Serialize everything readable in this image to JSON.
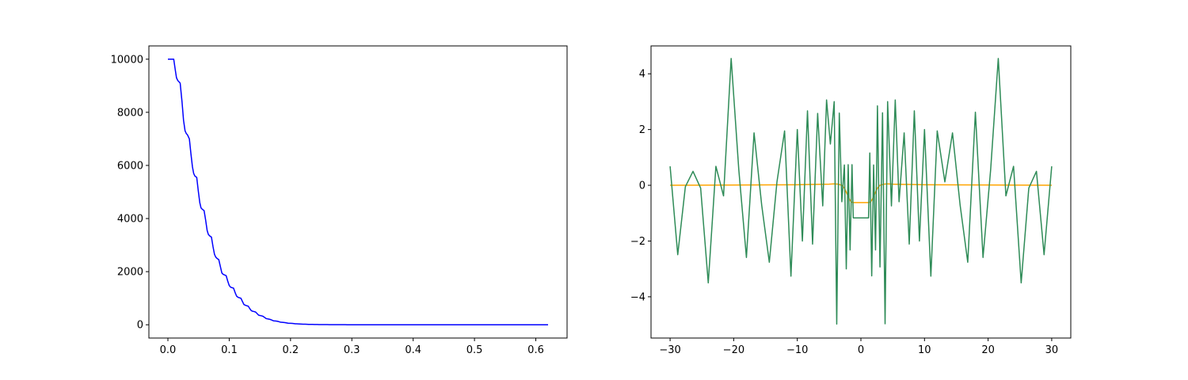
{
  "chart_data": [
    {
      "type": "line",
      "title": "",
      "xlabel": "",
      "ylabel": "",
      "xlim": [
        -0.031,
        0.651
      ],
      "ylim": [
        -500,
        10500
      ],
      "grid": false,
      "x_ticks": [
        0.0,
        0.1,
        0.2,
        0.3,
        0.4,
        0.5,
        0.6
      ],
      "x_tick_labels": [
        "0.0",
        "0.1",
        "0.2",
        "0.3",
        "0.4",
        "0.5",
        "0.6"
      ],
      "y_ticks": [
        0,
        2000,
        4000,
        6000,
        8000,
        10000
      ],
      "y_tick_labels": [
        "0",
        "2000",
        "4000",
        "6000",
        "8000",
        "10000"
      ],
      "series": [
        {
          "color": "#0000ff",
          "x": [
            0.0,
            0.005,
            0.0095,
            0.012,
            0.014,
            0.016,
            0.018,
            0.02,
            0.023,
            0.0255,
            0.028,
            0.03,
            0.032,
            0.035,
            0.0375,
            0.04,
            0.042,
            0.044,
            0.047,
            0.0495,
            0.052,
            0.054,
            0.056,
            0.059,
            0.0615,
            0.064,
            0.066,
            0.068,
            0.071,
            0.0735,
            0.076,
            0.078,
            0.08,
            0.083,
            0.0855,
            0.088,
            0.09,
            0.092,
            0.095,
            0.0975,
            0.1,
            0.102,
            0.104,
            0.107,
            0.1095,
            0.112,
            0.114,
            0.116,
            0.119,
            0.1215,
            0.124,
            0.126,
            0.128,
            0.131,
            0.1335,
            0.136,
            0.138,
            0.14,
            0.143,
            0.1455,
            0.148,
            0.15,
            0.152,
            0.155,
            0.1575,
            0.16,
            0.162,
            0.164,
            0.167,
            0.1695,
            0.172,
            0.174,
            0.176,
            0.179,
            0.1815,
            0.184,
            0.186,
            0.188,
            0.191,
            0.1935,
            0.196,
            0.198,
            0.2,
            0.203,
            0.2055,
            0.208,
            0.21,
            0.212,
            0.215,
            0.2175,
            0.22,
            0.222,
            0.224,
            0.227,
            0.2295,
            0.232,
            0.234,
            0.236,
            0.239,
            0.2415,
            0.244,
            0.246,
            0.248,
            0.251,
            0.2535,
            0.256,
            0.258,
            0.26,
            0.263,
            0.2655,
            0.268,
            0.27,
            0.272,
            0.275,
            0.2775,
            0.28,
            0.282,
            0.284,
            0.287,
            0.2895,
            0.292,
            0.294,
            0.296,
            0.299,
            0.3015,
            0.304,
            0.306,
            0.308,
            0.311,
            0.3135,
            0.316,
            0.318,
            0.32,
            0.323,
            0.3255,
            0.328,
            0.33,
            0.35,
            0.4,
            0.5,
            0.62
          ],
          "y": [
            10000,
            10000,
            10000,
            9600,
            9300,
            9200,
            9150,
            9100,
            8400,
            7700,
            7300,
            7200,
            7150,
            7000,
            6450,
            5950,
            5700,
            5600,
            5550,
            5050,
            4600,
            4400,
            4350,
            4300,
            3950,
            3550,
            3400,
            3350,
            3300,
            2950,
            2650,
            2550,
            2500,
            2450,
            2200,
            1950,
            1900,
            1880,
            1850,
            1650,
            1480,
            1420,
            1400,
            1380,
            1220,
            1080,
            1040,
            1020,
            1000,
            880,
            760,
            740,
            720,
            700,
            610,
            530,
            510,
            500,
            480,
            420,
            360,
            350,
            340,
            320,
            280,
            235,
            225,
            215,
            200,
            175,
            150,
            145,
            140,
            130,
            112,
            95,
            92,
            88,
            82,
            70,
            59,
            57,
            54,
            50,
            43,
            37,
            35,
            34,
            31,
            27,
            23,
            22,
            21,
            19,
            16,
            14,
            13,
            13,
            12,
            10,
            9,
            8,
            8,
            7,
            6,
            5,
            5,
            5,
            4,
            4,
            3,
            3,
            3,
            3,
            2,
            2,
            2,
            2,
            2,
            2,
            1,
            1,
            1,
            1,
            1,
            1,
            1,
            1,
            1,
            1,
            1,
            1,
            1,
            0,
            0,
            0,
            0,
            0,
            0,
            0,
            0
          ]
        }
      ]
    },
    {
      "type": "line",
      "title": "",
      "xlabel": "",
      "ylabel": "",
      "xlim": [
        -33.0,
        33.0
      ],
      "ylim": [
        -5.48,
        5.0
      ],
      "grid": false,
      "x_ticks": [
        -30,
        -20,
        -10,
        0,
        10,
        20,
        30
      ],
      "x_tick_labels": [
        "−30",
        "−20",
        "−10",
        "0",
        "10",
        "20",
        "30"
      ],
      "y_ticks": [
        -4,
        -2,
        0,
        2,
        4
      ],
      "y_tick_labels": [
        "−4",
        "−2",
        "0",
        "2",
        "4"
      ],
      "series": [
        {
          "color": "#ffa500",
          "x": [
            -30,
            -10,
            -5,
            -4.2,
            -3.6,
            -3.0,
            -2.6,
            -2.2,
            -1.8,
            -1.5,
            -1.2,
            1.2,
            1.5,
            1.8,
            2.2,
            2.6,
            3.0,
            3.6,
            4.2,
            5,
            10,
            30
          ],
          "y": [
            0.0,
            0.02,
            0.04,
            0.05,
            0.04,
            0.0,
            -0.1,
            -0.3,
            -0.5,
            -0.6,
            -0.62,
            -0.62,
            -0.6,
            -0.5,
            -0.3,
            -0.1,
            0.0,
            0.04,
            0.05,
            0.04,
            0.02,
            0.0
          ]
        },
        {
          "color": "#2e8b57",
          "x": [
            -30.0,
            -28.8,
            -27.6,
            -26.4,
            -25.2,
            -24.0,
            -22.8,
            -21.6,
            -20.4,
            -19.2,
            -18.0,
            -16.8,
            -15.6,
            -14.4,
            -13.2,
            -12.0,
            -11.0,
            -10.0,
            -9.2,
            -8.4,
            -7.6,
            -6.8,
            -6.0,
            -5.4,
            -4.8,
            -4.2,
            -3.8,
            -3.4,
            -3.0,
            -2.6,
            -2.3,
            -2.0,
            -1.7,
            -1.4,
            -1.2,
            -0.5,
            0.5,
            1.2,
            1.4,
            1.7,
            2.0,
            2.3,
            2.6,
            3.0,
            3.4,
            3.8,
            4.2,
            4.8,
            5.4,
            6.0,
            6.8,
            7.6,
            8.4,
            9.2,
            10.0,
            11.0,
            12.0,
            13.2,
            14.4,
            15.6,
            16.8,
            18.0,
            19.2,
            20.4,
            21.6,
            22.8,
            24.0,
            25.2,
            26.4,
            27.6,
            28.8,
            30.0
          ],
          "y": [
            0.68,
            -2.49,
            -0.05,
            0.5,
            -0.1,
            -3.5,
            0.68,
            -0.38,
            4.55,
            0.56,
            -2.59,
            1.88,
            -0.71,
            -2.76,
            0.12,
            1.95,
            -3.26,
            2.0,
            -2.0,
            2.67,
            -2.11,
            2.58,
            -0.74,
            3.06,
            1.48,
            3.0,
            -4.98,
            2.59,
            -0.59,
            0.73,
            -3.0,
            0.74,
            -2.32,
            0.74,
            -1.17,
            -1.17,
            -1.17,
            -1.17,
            1.16,
            -3.25,
            0.73,
            -2.32,
            2.85,
            -2.93,
            2.6,
            -4.97,
            3.0,
            -0.74,
            3.06,
            -0.59,
            1.88,
            -2.11,
            2.67,
            -2.0,
            2.0,
            -3.26,
            1.95,
            0.12,
            1.88,
            -0.71,
            -2.76,
            2.62,
            -2.59,
            0.56,
            4.55,
            -0.38,
            0.68,
            -3.5,
            -0.1,
            0.5,
            -2.49,
            0.68
          ]
        }
      ]
    }
  ]
}
